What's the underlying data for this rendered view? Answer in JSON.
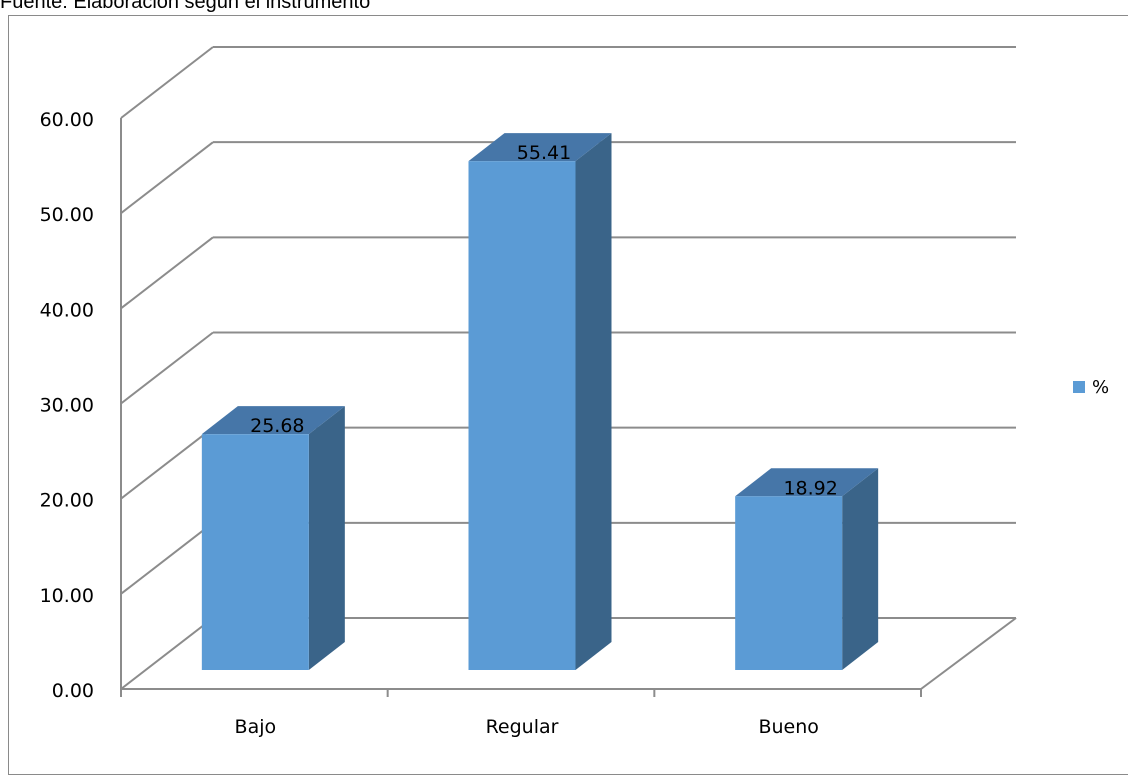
{
  "source_note": "Fuente: Elaboración según el instrumento",
  "chart_data": {
    "type": "bar",
    "categories": [
      "Bajo",
      "Regular",
      "Bueno"
    ],
    "series": [
      {
        "name": "%",
        "values": [
          25.68,
          55.41,
          18.92
        ],
        "data_labels": [
          "25.68",
          "55.41",
          "18.92"
        ]
      }
    ],
    "y_ticks": [
      "0.00",
      "10.00",
      "20.00",
      "30.00",
      "40.00",
      "50.00",
      "60.00"
    ],
    "ylim": [
      0,
      60
    ],
    "grid": true,
    "legend_position": "right",
    "style": "3d-column",
    "colors": {
      "bar_front": "#5b9bd5",
      "bar_side": "#3a6489",
      "bar_top": "#4676a8",
      "grid": "#8c8c8c"
    }
  }
}
